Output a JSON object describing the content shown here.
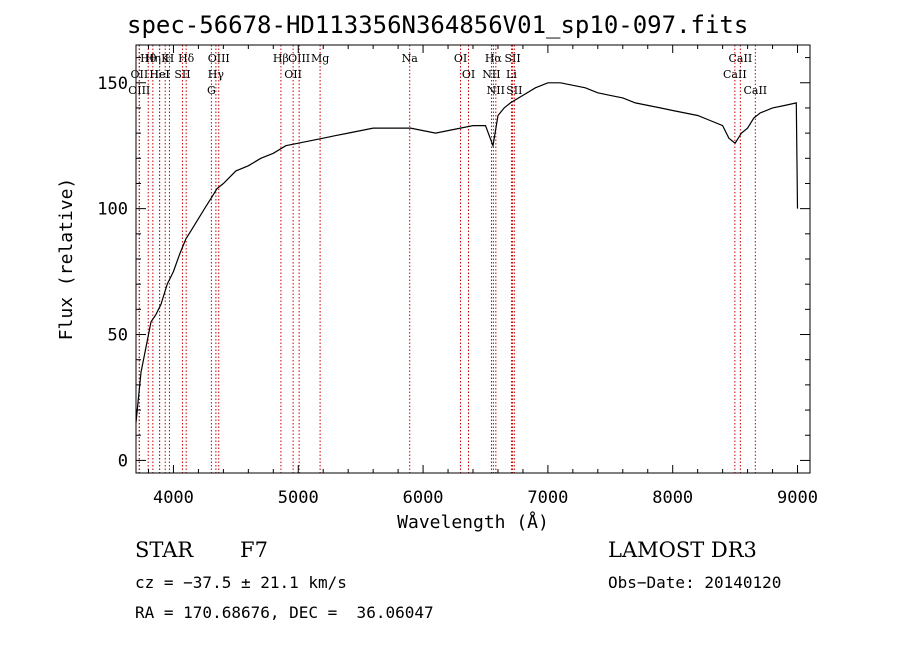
{
  "chart_data": {
    "type": "line",
    "title": "spec-56678-HD113356N364856V01_sp10-097.fits",
    "xlabel": "Wavelength (Å)",
    "ylabel": "Flux (relative)",
    "xlim": [
      3700,
      9100
    ],
    "ylim": [
      -5,
      165
    ],
    "xticks": [
      4000,
      5000,
      6000,
      7000,
      8000,
      9000
    ],
    "yticks": [
      0,
      50,
      100,
      150
    ],
    "grid": false,
    "line_color": "#000000",
    "marker_color": "#cc0000",
    "series": [
      {
        "x": [
          3700,
          3740,
          3780,
          3820,
          3860,
          3900,
          3950,
          4000,
          4050,
          4100,
          4150,
          4200,
          4250,
          4300,
          4350,
          4400,
          4500,
          4600,
          4700,
          4800,
          4900,
          5000,
          5100,
          5200,
          5300,
          5400,
          5500,
          5600,
          5700,
          5800,
          5900,
          6000,
          6100,
          6200,
          6300,
          6400,
          6500,
          6560,
          6600,
          6650,
          6700,
          6800,
          6900,
          7000,
          7100,
          7200,
          7300,
          7400,
          7500,
          7600,
          7700,
          7800,
          7900,
          8000,
          8100,
          8200,
          8300,
          8400,
          8450,
          8500,
          8550,
          8600,
          8650,
          8700,
          8800,
          8900,
          8990,
          9000
        ],
        "y": [
          15,
          35,
          45,
          55,
          58,
          62,
          70,
          75,
          82,
          88,
          92,
          96,
          100,
          104,
          108,
          110,
          115,
          117,
          120,
          122,
          125,
          126,
          127,
          128,
          129,
          130,
          131,
          132,
          132,
          132,
          132,
          131,
          130,
          131,
          132,
          133,
          133,
          125,
          137,
          140,
          142,
          145,
          148,
          150,
          150,
          149,
          148,
          146,
          145,
          144,
          142,
          141,
          140,
          139,
          138,
          137,
          135,
          133,
          128,
          126,
          130,
          132,
          136,
          138,
          140,
          141,
          142,
          100
        ]
      }
    ],
    "lines": [
      {
        "labels": [
          "Hθ",
          "OII",
          "OIII"
        ],
        "x": [
          3798,
          3727,
          3726
        ]
      },
      {
        "labels": [
          "Hη",
          "HeI"
        ],
        "x": [
          3835,
          3889
        ]
      },
      {
        "labels": [
          "K",
          "HeI"
        ],
        "x": [
          3934,
          3889
        ]
      },
      {
        "labels": [
          "H"
        ],
        "x": [
          3968
        ]
      },
      {
        "labels": [
          "Hδ",
          "SII"
        ],
        "x": [
          4102,
          4072
        ]
      },
      {
        "labels": [
          "OIII",
          "Hγ",
          "G"
        ],
        "x": [
          4363,
          4340,
          4304
        ]
      },
      {
        "labels": [
          "Hβ"
        ],
        "x": [
          4861
        ]
      },
      {
        "labels": [
          "OIII",
          "OII"
        ],
        "x": [
          5007,
          4959
        ]
      },
      {
        "labels": [
          "Mg"
        ],
        "x": [
          5175
        ]
      },
      {
        "labels": [
          "Na"
        ],
        "x": [
          5893
        ]
      },
      {
        "labels": [
          "OI",
          "OI"
        ],
        "x": [
          6300,
          6364
        ]
      },
      {
        "labels": [
          "Hα",
          "NII",
          "NII"
        ],
        "x": [
          6563,
          6548,
          6583
        ]
      },
      {
        "labels": [
          "SII",
          "Li",
          "SII"
        ],
        "x": [
          6717,
          6708,
          6731
        ]
      },
      {
        "labels": [
          "CaII",
          "CaII",
          "CaII"
        ],
        "x": [
          8542,
          8498,
          8662
        ]
      }
    ]
  },
  "info": {
    "object_class": "STAR",
    "subclass": "F7",
    "survey": "LAMOST DR3",
    "cz": "cz = −37.5 ± 21.1 km/s",
    "obs_date": "Obs−Date: 20140120",
    "coords": "RA = 170.68676, DEC =  36.06047"
  }
}
